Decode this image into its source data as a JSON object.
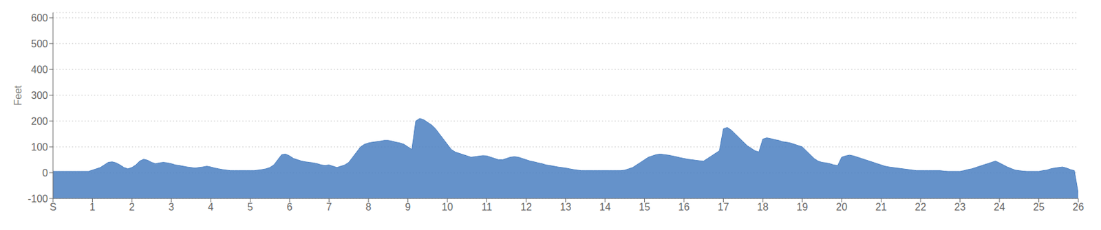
{
  "chart_data": {
    "type": "area",
    "y_label": "Feet",
    "color": "#4a7fc1",
    "grid": true,
    "xlim": [
      0,
      26
    ],
    "ylim": [
      -100,
      620
    ],
    "xticks": [
      {
        "value": 0,
        "label": "S"
      },
      1,
      2,
      3,
      4,
      5,
      6,
      7,
      8,
      9,
      10,
      11,
      12,
      13,
      14,
      15,
      16,
      17,
      18,
      19,
      20,
      21,
      22,
      23,
      24,
      25,
      26
    ],
    "yticks": [
      -100,
      0,
      100,
      200,
      300,
      400,
      500,
      600
    ],
    "x": [
      0.0,
      0.05,
      0.1,
      0.2,
      0.3,
      0.4,
      0.5,
      0.6,
      0.7,
      0.8,
      0.9,
      1.0,
      1.1,
      1.2,
      1.3,
      1.4,
      1.5,
      1.6,
      1.7,
      1.8,
      1.9,
      2.0,
      2.1,
      2.2,
      2.3,
      2.4,
      2.5,
      2.6,
      2.7,
      2.8,
      2.9,
      3.0,
      3.1,
      3.2,
      3.3,
      3.4,
      3.5,
      3.6,
      3.7,
      3.8,
      3.9,
      4.0,
      4.1,
      4.2,
      4.3,
      4.4,
      4.5,
      4.6,
      4.7,
      4.8,
      4.9,
      5.0,
      5.1,
      5.2,
      5.3,
      5.4,
      5.5,
      5.6,
      5.7,
      5.8,
      5.9,
      6.0,
      6.1,
      6.2,
      6.3,
      6.4,
      6.5,
      6.6,
      6.7,
      6.8,
      6.9,
      7.0,
      7.1,
      7.2,
      7.3,
      7.4,
      7.5,
      7.6,
      7.7,
      7.8,
      7.9,
      8.0,
      8.1,
      8.2,
      8.3,
      8.4,
      8.5,
      8.6,
      8.7,
      8.8,
      8.9,
      9.0,
      9.1,
      9.2,
      9.3,
      9.4,
      9.5,
      9.6,
      9.7,
      9.8,
      9.9,
      10.0,
      10.1,
      10.2,
      10.3,
      10.4,
      10.5,
      10.6,
      10.7,
      10.8,
      10.9,
      11.0,
      11.1,
      11.2,
      11.3,
      11.4,
      11.5,
      11.6,
      11.7,
      11.8,
      11.9,
      12.0,
      12.1,
      12.2,
      12.3,
      12.4,
      12.5,
      12.6,
      12.7,
      12.8,
      12.9,
      13.0,
      13.1,
      13.2,
      13.3,
      13.4,
      13.5,
      13.6,
      13.7,
      13.8,
      13.9,
      14.0,
      14.1,
      14.2,
      14.3,
      14.4,
      14.5,
      14.6,
      14.7,
      14.8,
      14.9,
      15.0,
      15.1,
      15.2,
      15.3,
      15.4,
      15.5,
      15.6,
      15.7,
      15.8,
      15.9,
      16.0,
      16.1,
      16.2,
      16.3,
      16.4,
      16.5,
      16.6,
      16.7,
      16.8,
      16.9,
      17.0,
      17.1,
      17.2,
      17.3,
      17.4,
      17.5,
      17.6,
      17.7,
      17.8,
      17.9,
      18.0,
      18.1,
      18.2,
      18.3,
      18.4,
      18.5,
      18.6,
      18.7,
      18.8,
      18.9,
      19.0,
      19.1,
      19.2,
      19.3,
      19.4,
      19.5,
      19.6,
      19.7,
      19.8,
      19.9,
      20.0,
      20.1,
      20.2,
      20.3,
      20.4,
      20.5,
      20.6,
      20.7,
      20.8,
      20.9,
      21.0,
      21.1,
      21.2,
      21.3,
      21.4,
      21.5,
      21.6,
      21.7,
      21.8,
      21.9,
      22.0,
      22.1,
      22.2,
      22.3,
      22.4,
      22.5,
      22.6,
      22.7,
      22.8,
      22.9,
      23.0,
      23.1,
      23.2,
      23.3,
      23.4,
      23.5,
      23.6,
      23.7,
      23.8,
      23.9,
      24.0,
      24.1,
      24.2,
      24.3,
      24.4,
      24.5,
      24.6,
      24.7,
      24.8,
      24.9,
      25.0,
      25.1,
      25.2,
      25.3,
      25.4,
      25.5,
      25.6,
      25.7,
      25.8,
      25.9,
      26.0
    ],
    "values": [
      5,
      5,
      5,
      5,
      5,
      5,
      5,
      5,
      5,
      5,
      5,
      10,
      15,
      20,
      30,
      40,
      42,
      38,
      30,
      20,
      15,
      20,
      30,
      45,
      52,
      48,
      40,
      35,
      38,
      40,
      38,
      35,
      30,
      28,
      25,
      22,
      20,
      18,
      20,
      22,
      25,
      22,
      18,
      15,
      12,
      10,
      8,
      8,
      8,
      8,
      8,
      8,
      8,
      10,
      12,
      15,
      20,
      30,
      50,
      70,
      72,
      65,
      55,
      50,
      45,
      42,
      40,
      38,
      35,
      30,
      28,
      30,
      25,
      20,
      25,
      30,
      40,
      60,
      80,
      100,
      110,
      115,
      118,
      120,
      122,
      125,
      125,
      122,
      118,
      115,
      110,
      100,
      90,
      200,
      210,
      205,
      195,
      185,
      170,
      150,
      130,
      110,
      90,
      80,
      75,
      70,
      65,
      60,
      62,
      64,
      66,
      65,
      60,
      55,
      50,
      50,
      55,
      60,
      62,
      60,
      55,
      50,
      45,
      42,
      38,
      35,
      30,
      28,
      25,
      22,
      20,
      18,
      15,
      12,
      10,
      8,
      8,
      8,
      8,
      8,
      8,
      8,
      8,
      8,
      8,
      8,
      10,
      15,
      20,
      30,
      40,
      50,
      60,
      65,
      70,
      72,
      70,
      68,
      65,
      62,
      58,
      55,
      52,
      50,
      48,
      46,
      45,
      55,
      65,
      75,
      85,
      170,
      175,
      165,
      150,
      135,
      120,
      105,
      95,
      85,
      80,
      130,
      135,
      132,
      128,
      125,
      120,
      118,
      115,
      110,
      105,
      100,
      85,
      70,
      55,
      45,
      40,
      38,
      35,
      30,
      28,
      60,
      65,
      68,
      65,
      60,
      55,
      50,
      45,
      40,
      35,
      30,
      25,
      22,
      20,
      18,
      16,
      14,
      12,
      10,
      8,
      8,
      8,
      8,
      8,
      8,
      8,
      6,
      5,
      5,
      5,
      5,
      8,
      12,
      15,
      20,
      25,
      30,
      35,
      40,
      45,
      38,
      30,
      22,
      16,
      10,
      8,
      6,
      5,
      5,
      5,
      5,
      8,
      10,
      15,
      18,
      20,
      22,
      18,
      12,
      8,
      -80
    ]
  }
}
